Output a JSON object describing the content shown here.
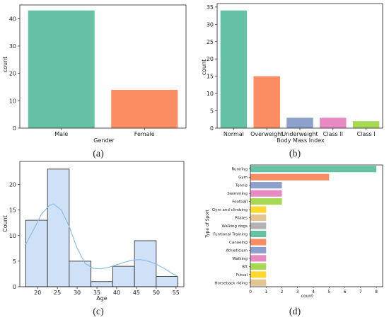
{
  "chart_data": [
    {
      "panel": "(a)",
      "type": "bar",
      "xlabel": "Gender",
      "ylabel": "count",
      "categories": [
        "Male",
        "Female"
      ],
      "values": [
        43,
        14
      ],
      "colors": [
        "#66c2a5",
        "#fc8d62"
      ],
      "ylim": [
        0,
        45
      ],
      "yticks": [
        0,
        10,
        20,
        30,
        40
      ],
      "grid": false
    },
    {
      "panel": "(b)",
      "type": "bar",
      "xlabel": "Body Mass Index",
      "ylabel": "count",
      "categories": [
        "Normal",
        "Overweight",
        "Underweight",
        "Class II",
        "Class I"
      ],
      "values": [
        34,
        15,
        3,
        3,
        2
      ],
      "colors": [
        "#66c2a5",
        "#fc8d62",
        "#8da0cb",
        "#e78ac3",
        "#a6d854"
      ],
      "ylim": [
        0,
        36
      ],
      "yticks": [
        0,
        5,
        10,
        15,
        20,
        25,
        30,
        35
      ],
      "grid": false
    },
    {
      "panel": "(c)",
      "type": "bar",
      "subtype": "histogram",
      "xlabel": "Age",
      "ylabel": "Count",
      "bin_edges": [
        17,
        22.5,
        28,
        33.5,
        39,
        44.5,
        50,
        55.5
      ],
      "values": [
        13,
        23,
        5,
        1,
        4,
        9,
        2
      ],
      "kde": [
        [
          17,
          8.3
        ],
        [
          19,
          11.2
        ],
        [
          21,
          14.2
        ],
        [
          23,
          15.9
        ],
        [
          24,
          16.2
        ],
        [
          26,
          15.0
        ],
        [
          28,
          11.8
        ],
        [
          30,
          7.5
        ],
        [
          32,
          4.6
        ],
        [
          34,
          3.6
        ],
        [
          36,
          3.5
        ],
        [
          38,
          3.8
        ],
        [
          40,
          4.3
        ],
        [
          42,
          4.8
        ],
        [
          44,
          5.2
        ],
        [
          46,
          5.3
        ],
        [
          48,
          5.0
        ],
        [
          50,
          4.4
        ],
        [
          52,
          3.6
        ],
        [
          54,
          2.6
        ],
        [
          55.5,
          2.0
        ]
      ],
      "bar_color": "#cfe1f7",
      "kde_color": "#8fbce6",
      "xlim": [
        15.5,
        57
      ],
      "ylim": [
        0,
        24.5
      ],
      "xticks": [
        20,
        25,
        30,
        35,
        40,
        45,
        50,
        55
      ],
      "yticks": [
        0,
        5,
        10,
        15,
        20
      ],
      "grid": false
    },
    {
      "panel": "(d)",
      "type": "bar",
      "orientation": "horizontal",
      "xlabel": "count",
      "ylabel": "Type of Sport",
      "categories": [
        "Running",
        "Gym",
        "Tennis",
        "Swimming",
        "Football",
        "Gym and climbing",
        "Pilates",
        "Walking dogs",
        "Funtional Training",
        "Canoeing",
        "Athleticism",
        "Walking",
        "Bft",
        "Futsal",
        "Horseback riding"
      ],
      "values": [
        8,
        5,
        2,
        2,
        2,
        1,
        1,
        1,
        1,
        1,
        1,
        1,
        1,
        1,
        1
      ],
      "colors": [
        "#66c2a5",
        "#fc8d62",
        "#8da0cb",
        "#e78ac3",
        "#a6d854",
        "#ffd92f",
        "#e5c494",
        "#b3b3b3",
        "#66c2a5",
        "#fc8d62",
        "#8da0cb",
        "#e78ac3",
        "#a6d854",
        "#ffd92f",
        "#e5c494"
      ],
      "xlim": [
        0,
        8.4
      ],
      "xticks": [
        0,
        1,
        2,
        3,
        4,
        5,
        6,
        7,
        8
      ],
      "grid": false
    }
  ]
}
